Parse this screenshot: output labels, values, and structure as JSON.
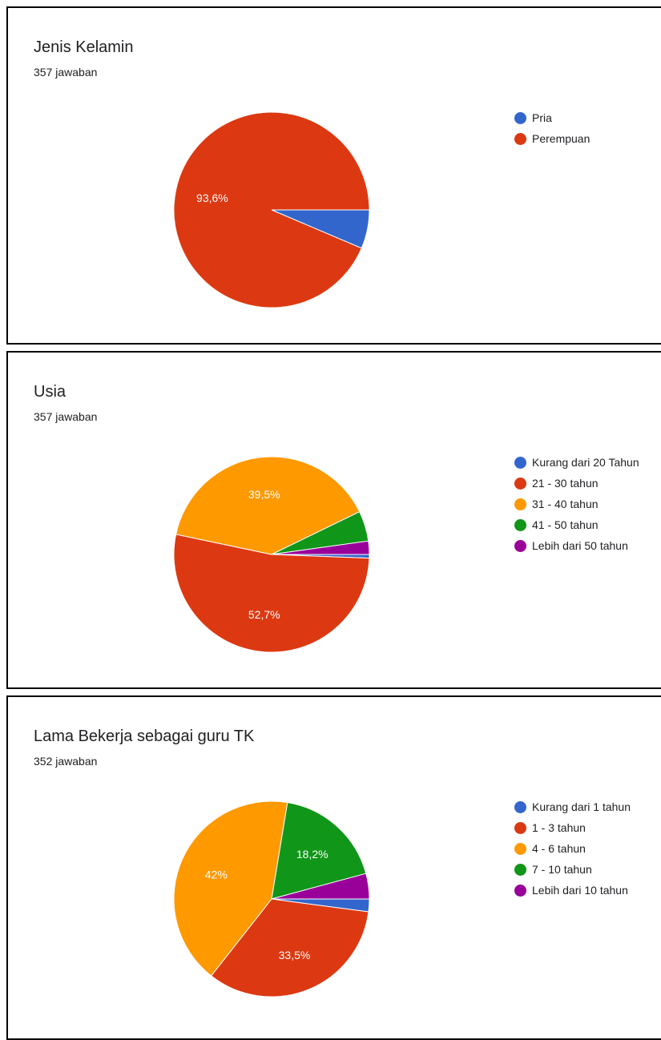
{
  "chart_data": [
    {
      "type": "pie",
      "title": "Jenis Kelamin",
      "subtitle": "357 jawaban",
      "categories": [
        "Pria",
        "Perempuan"
      ],
      "values": [
        6.4,
        93.6
      ],
      "labels": [
        "",
        "93,6%"
      ],
      "colors": [
        "#3366cc",
        "#dc3912"
      ],
      "legend": "right"
    },
    {
      "type": "pie",
      "title": "Usia",
      "subtitle": "357 jawaban",
      "categories": [
        "Kurang dari 20 Tahun",
        "21 - 30 tahun",
        "31 - 40 tahun",
        "41 - 50 tahun",
        "Lebih dari 50 tahun"
      ],
      "values": [
        0.6,
        52.7,
        39.5,
        5.0,
        2.2
      ],
      "labels": [
        "",
        "52,7%",
        "39,5%",
        "",
        ""
      ],
      "colors": [
        "#3366cc",
        "#dc3912",
        "#ff9900",
        "#109618",
        "#990099"
      ],
      "legend": "right"
    },
    {
      "type": "pie",
      "title": "Lama Bekerja sebagai guru TK",
      "subtitle": "352 jawaban",
      "categories": [
        "Kurang dari 1 tahun",
        "1 - 3 tahun",
        "4 - 6 tahun",
        "7 - 10 tahun",
        "Lebih dari 10 tahun"
      ],
      "values": [
        2.1,
        33.5,
        42,
        18.2,
        4.2
      ],
      "labels": [
        "",
        "33,5%",
        "42%",
        "18,2%",
        ""
      ],
      "colors": [
        "#3366cc",
        "#dc3912",
        "#ff9900",
        "#109618",
        "#990099"
      ],
      "legend": "right"
    }
  ]
}
